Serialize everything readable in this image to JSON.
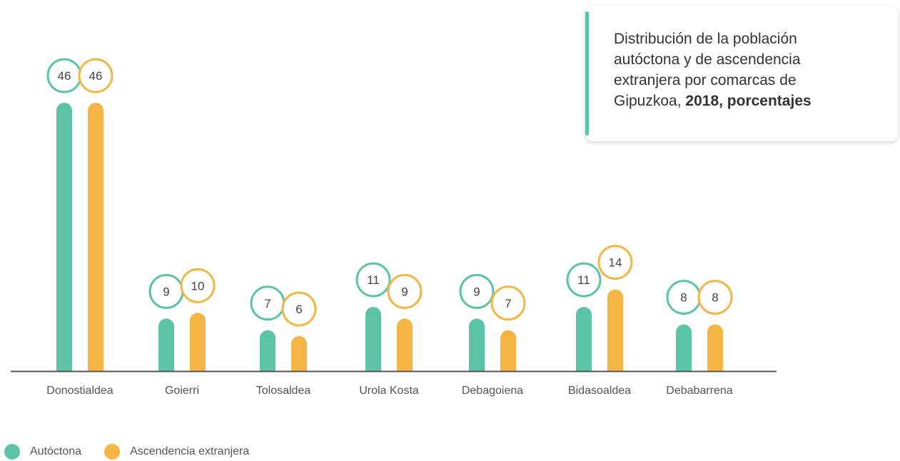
{
  "colors": {
    "autoctona": "#5bc4a6",
    "extranjera": "#f5b545",
    "axis": "#555555",
    "label": "#555555",
    "bubble_text": "#444444"
  },
  "title": {
    "text": "Distribución de la población autóctona y de ascendencia extranjera por comarcas de Gipuzkoa,",
    "bold": "2018, porcentajes"
  },
  "legend": {
    "autoctona": "Autóctona",
    "extranjera": "Ascendencia extranjera"
  },
  "chart_data": {
    "type": "bar",
    "categories": [
      "Donostialdea",
      "Goierri",
      "Tolosaldea",
      "Urola Kosta",
      "Debagoiena",
      "Bidasoaldea",
      "Debabarrena"
    ],
    "series": [
      {
        "name": "Autóctona",
        "values": [
          46,
          9,
          7,
          11,
          9,
          11,
          8
        ]
      },
      {
        "name": "Ascendencia extranjera",
        "values": [
          46,
          10,
          6,
          9,
          7,
          14,
          8
        ]
      }
    ],
    "ylim": [
      0,
      46
    ],
    "grid": false,
    "legend_position": "bottom-left",
    "data_labels": "circle-badges"
  }
}
